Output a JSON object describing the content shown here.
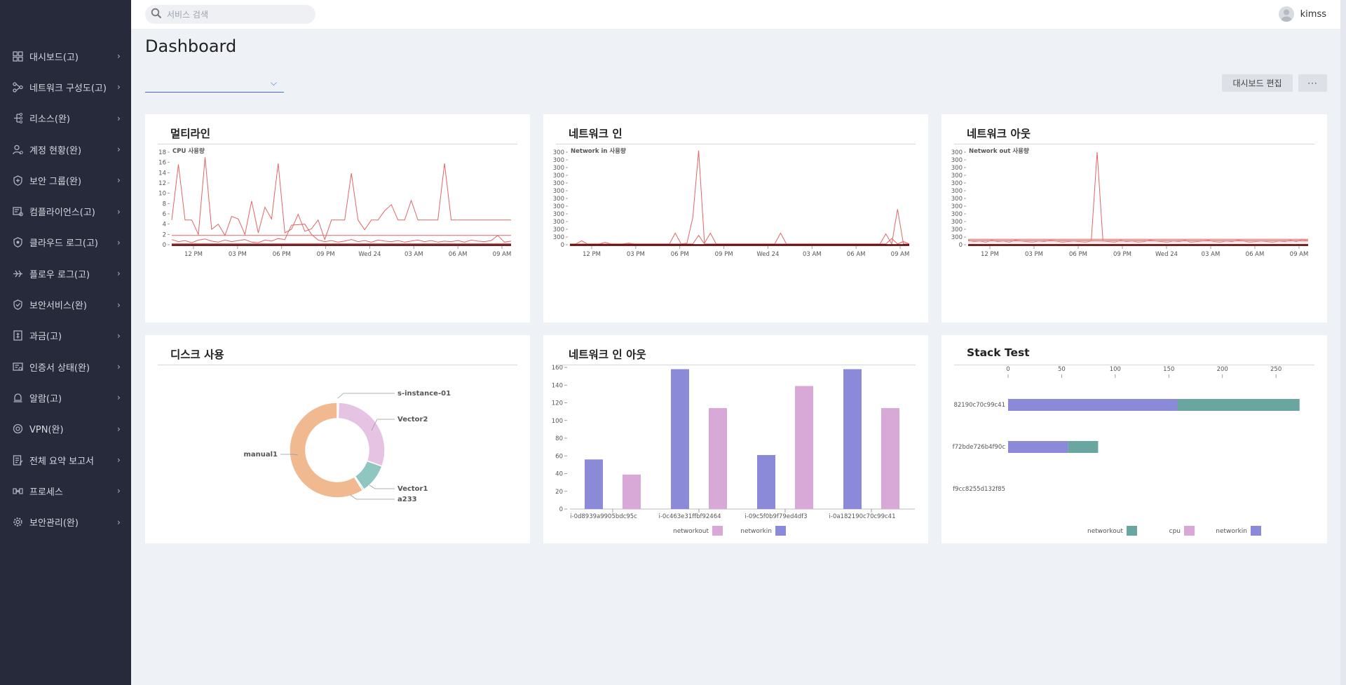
{
  "search": {
    "placeholder": "서비스 검색"
  },
  "user": {
    "name": "kimss"
  },
  "page": {
    "title": "Dashboard"
  },
  "toolbar": {
    "edit_label": "대시보드 편집",
    "more_label": "···"
  },
  "sidebar": {
    "items": [
      {
        "label": "대시보드(고)",
        "icon": "dashboard-icon"
      },
      {
        "label": "네트워크 구성도(고)",
        "icon": "network-topology-icon"
      },
      {
        "label": "리소스(완)",
        "icon": "resource-icon"
      },
      {
        "label": "계정 현황(완)",
        "icon": "account-icon"
      },
      {
        "label": "보안 그룹(완)",
        "icon": "security-group-icon"
      },
      {
        "label": "컴플라이언스(고)",
        "icon": "compliance-icon"
      },
      {
        "label": "클라우드 로그(고)",
        "icon": "cloud-log-icon"
      },
      {
        "label": "플로우 로그(고)",
        "icon": "flow-log-icon"
      },
      {
        "label": "보안서비스(완)",
        "icon": "shield-icon"
      },
      {
        "label": "과금(고)",
        "icon": "billing-icon"
      },
      {
        "label": "인증서 상태(완)",
        "icon": "certificate-icon"
      },
      {
        "label": "알람(고)",
        "icon": "alarm-icon"
      },
      {
        "label": "VPN(완)",
        "icon": "vpn-icon"
      },
      {
        "label": "전체 요약 보고서",
        "icon": "report-icon"
      },
      {
        "label": "프로세스",
        "icon": "process-icon"
      },
      {
        "label": "보안관리(완)",
        "icon": "gear-icon"
      }
    ]
  },
  "cards": [
    {
      "title": "멀티라인"
    },
    {
      "title": "네트워크 인"
    },
    {
      "title": "네트워크 아웃"
    },
    {
      "title": "디스크 사용"
    },
    {
      "title": "네트워크 인 아웃"
    },
    {
      "title": "Stack Test"
    }
  ],
  "colors": {
    "line": "#e06666",
    "networkin": "#8a8ad8",
    "networkout": "#d8a9d6",
    "stack_networkin": "#8a8ad8",
    "stack_networkout": "#6aa6a0",
    "stack_cpu": "#d8a9d6",
    "donut_manual1": "#f0b98f",
    "donut_vector2": "#e6c3e3",
    "donut_vector1": "#8fc6bf",
    "donut_a233": "#8fc6bf"
  },
  "chart_data": [
    {
      "type": "line",
      "ylabel": "CPU 사용량",
      "ylim": [
        0,
        18
      ],
      "yticks": [
        "0",
        "2",
        "4",
        "6",
        "8",
        "10",
        "12",
        "14",
        "16",
        "18"
      ],
      "xticks": [
        "12 PM",
        "03 PM",
        "06 PM",
        "09 PM",
        "Wed 24",
        "03 AM",
        "06 AM",
        "09 AM"
      ],
      "series": [
        {
          "values": [
            4.8,
            15.6,
            4.8,
            4.8,
            2.0,
            17.0,
            3.0,
            4.0,
            1.8,
            5.5,
            5.0,
            2.0,
            8.5,
            2.3,
            7.3,
            5.0,
            15.8,
            2.3,
            3.0,
            5.9,
            2.6,
            3.1,
            4.8,
            1.0,
            4.8,
            4.8,
            4.8,
            13.9,
            4.8,
            2.9,
            4.8,
            4.8,
            6.6,
            7.8,
            4.8,
            4.8,
            8.6,
            4.8,
            4.8,
            4.8,
            4.8,
            15.8,
            4.8,
            4.8,
            4.8,
            4.8,
            4.8,
            4.8,
            4.8,
            4.8,
            4.8,
            4.8
          ]
        },
        {
          "values": [
            1.8,
            1.8,
            1.8,
            1.8,
            1.8,
            1.8,
            1.8,
            1.8,
            1.8,
            1.8,
            1.8,
            1.8,
            1.8,
            1.8,
            1.8,
            1.8,
            1.8,
            1.8,
            1.8,
            1.8,
            1.8,
            1.8,
            1.8,
            1.8,
            1.8,
            1.8,
            1.8,
            1.8,
            1.8,
            1.8,
            1.8,
            1.8,
            1.8,
            1.8,
            1.8,
            1.8,
            1.8,
            1.8,
            1.8,
            1.8,
            1.8,
            1.8,
            1.8,
            1.8,
            1.8,
            1.8,
            1.8,
            1.8,
            1.8,
            1.8,
            1.8,
            1.8
          ]
        },
        {
          "values": [
            1.0,
            0.6,
            0.8,
            0.4,
            0.9,
            1.1,
            0.7,
            0.5,
            0.9,
            0.6,
            0.8,
            1.0,
            0.5,
            0.4,
            0.9,
            0.7,
            1.2,
            1.0,
            3.8,
            3.9,
            4.0,
            2.0,
            0.9,
            0.6,
            0.8,
            0.5,
            0.7,
            1.0,
            0.6,
            0.8,
            0.5,
            0.9,
            0.7,
            0.6,
            0.8,
            0.5,
            0.7,
            0.9,
            0.6,
            0.8,
            0.5,
            0.7,
            0.6,
            0.8,
            0.5,
            0.9,
            0.7,
            0.6,
            0.8,
            1.8,
            0.5,
            0.7
          ]
        },
        {
          "values": [
            0.2,
            0.2,
            0.2,
            0.2,
            0.2,
            0.2,
            0.2,
            0.2,
            0.2,
            0.2,
            0.2,
            0.2,
            0.2,
            0.2,
            0.2,
            0.2,
            0.2,
            0.2,
            0.2,
            0.2,
            0.2,
            0.2,
            0.2,
            0.2,
            0.2,
            0.2,
            0.2,
            0.2,
            0.2,
            0.2,
            0.2,
            0.2,
            0.2,
            0.2,
            0.2,
            0.2,
            0.2,
            0.2,
            0.2,
            0.2,
            0.2,
            0.2,
            0.2,
            0.2,
            0.2,
            0.2,
            0.2,
            0.2,
            0.2,
            0.2,
            0.2,
            0.2
          ]
        }
      ]
    },
    {
      "type": "line",
      "ylabel": "Network in 사용량",
      "yticks": [
        "0",
        "300",
        "300",
        "300",
        "300",
        "300",
        "300",
        "300",
        "300",
        "300",
        "300",
        "300",
        "300"
      ],
      "ylim": [
        0,
        12
      ],
      "xticks": [
        "12 PM",
        "03 PM",
        "06 PM",
        "09 PM",
        "Wed 24",
        "03 AM",
        "06 AM",
        "09 AM"
      ],
      "series": [
        {
          "values": [
            0.1,
            0.1,
            0.5,
            0.1,
            0.1,
            0.1,
            0.3,
            0.1,
            0.1,
            0.1,
            0.2,
            0.1,
            0.1,
            0.1,
            0.1,
            0.1,
            0.1,
            0.1,
            1.5,
            0.1,
            0.2,
            3.5,
            12.2,
            0.2,
            1.5,
            0.1,
            0.1,
            0.1,
            0.1,
            0.1,
            0.1,
            0.1,
            0.1,
            0.1,
            0.1,
            0.1,
            1.5,
            0.1,
            0.1,
            0.1,
            0.1,
            0.1,
            0.1,
            0.1,
            0.1,
            0.1,
            0.1,
            0.1,
            0.1,
            0.1,
            0.1,
            0.1,
            0.1,
            0.1,
            1.4,
            0.1,
            4.6,
            0.1,
            0.1
          ]
        },
        {
          "values": [
            0.1,
            0.1,
            0.1,
            0.1,
            0.1,
            0.1,
            0.1,
            0.1,
            0.1,
            0.1,
            0.1,
            0.1,
            0.1,
            0.1,
            0.1,
            0.1,
            0.1,
            0.1,
            0.1,
            0.1,
            0.1,
            0.1,
            1.2,
            0.1,
            0.1,
            0.1,
            0.1,
            0.1,
            0.1,
            0.1,
            0.1,
            0.1,
            0.1,
            0.1,
            0.1,
            0.1,
            0.1,
            0.1,
            0.1,
            0.1,
            0.1,
            0.1,
            0.1,
            0.1,
            0.1,
            0.1,
            0.1,
            0.1,
            0.1,
            0.1,
            0.1,
            0.1,
            0.1,
            0.1,
            0.1,
            0.8,
            0.1,
            0.4,
            0.1
          ]
        }
      ]
    },
    {
      "type": "line",
      "ylabel": "Network out 사용량",
      "yticks": [
        "0",
        "300",
        "300",
        "300",
        "300",
        "300",
        "300",
        "300",
        "300",
        "300",
        "300",
        "300",
        "300"
      ],
      "ylim": [
        0,
        12
      ],
      "xticks": [
        "12 PM",
        "03 PM",
        "06 PM",
        "09 PM",
        "Wed 24",
        "03 AM",
        "06 AM",
        "09 AM"
      ],
      "series": [
        {
          "values": [
            0.6,
            0.4,
            0.5,
            0.3,
            0.6,
            0.4,
            0.5,
            0.3,
            0.6,
            0.5,
            0.4,
            0.3,
            0.5,
            0.4,
            0.6,
            0.5,
            0.3,
            0.4,
            0.5,
            0.4,
            0.3,
            0.5,
            12.0,
            0.5,
            0.4,
            0.3,
            0.6,
            0.4,
            0.5,
            0.3,
            0.4,
            0.6,
            0.5,
            0.4,
            0.3,
            0.5,
            0.4,
            0.6,
            0.3,
            0.4,
            0.5,
            0.6,
            0.4,
            0.3,
            0.5,
            0.4,
            0.6,
            0.5,
            0.3,
            0.4,
            0.5,
            0.4,
            0.3,
            0.5,
            0.4,
            0.6,
            0.4,
            0.7,
            0.5
          ]
        },
        {
          "values": [
            0.7,
            0.7,
            0.7,
            0.7,
            0.7,
            0.7,
            0.7,
            0.7,
            0.7,
            0.7,
            0.7,
            0.7,
            0.7,
            0.7,
            0.7,
            0.7,
            0.7,
            0.7,
            0.7,
            0.7,
            0.7,
            0.7,
            0.7,
            0.7,
            0.7,
            0.7,
            0.7,
            0.7,
            0.7,
            0.7,
            0.7,
            0.7,
            0.7,
            0.7,
            0.7,
            0.7,
            0.7,
            0.7,
            0.7,
            0.7,
            0.7,
            0.7,
            0.7,
            0.7,
            0.7,
            0.7,
            0.7,
            0.7,
            0.7,
            0.7,
            0.7,
            0.7,
            0.7,
            0.7,
            0.7,
            0.7,
            0.7,
            0.7,
            0.7
          ]
        },
        {
          "values": [
            0.5,
            0.5,
            0.5,
            0.5,
            0.5,
            0.5,
            0.5,
            0.5,
            0.5,
            0.5,
            0.5,
            0.5,
            0.5,
            0.5,
            0.5,
            0.5,
            0.5,
            0.5,
            0.5,
            0.5,
            0.5,
            0.5,
            0.5,
            0.5,
            0.5,
            0.5,
            0.5,
            0.5,
            0.5,
            0.5,
            0.5,
            0.5,
            0.5,
            0.5,
            0.5,
            0.5,
            0.5,
            0.5,
            0.5,
            0.5,
            0.5,
            0.5,
            0.5,
            0.5,
            0.5,
            0.5,
            0.5,
            0.5,
            0.5,
            0.5,
            0.5,
            0.5,
            0.5,
            0.5,
            0.5,
            0.5,
            0.5,
            0.5,
            0.5
          ]
        }
      ]
    },
    {
      "type": "pie",
      "slices": [
        {
          "label": "s-instance-01",
          "value": 0.5
        },
        {
          "label": "Vector2",
          "value": 30
        },
        {
          "label": "Vector1",
          "value": 10
        },
        {
          "label": "a233",
          "value": 0.5
        },
        {
          "label": "manual1",
          "value": 59
        }
      ]
    },
    {
      "type": "bar",
      "categories": [
        "i-0d8939a9905bdc95c",
        "i-0c463e31ffbf92464",
        "i-09c5f0b9f79ed4df3",
        "i-0a182190c70c99c41"
      ],
      "yticks": [
        "0",
        "20",
        "40",
        "60",
        "80",
        "100",
        "120",
        "140",
        "160"
      ],
      "ylim": [
        0,
        160
      ],
      "series": [
        {
          "name": "networkin",
          "values": [
            56,
            158,
            61,
            158
          ]
        },
        {
          "name": "networkout",
          "values": [
            39,
            114,
            139,
            114
          ]
        }
      ],
      "legend": [
        "networkout",
        "networkin"
      ]
    },
    {
      "type": "bar",
      "orientation": "horizontal",
      "stacked": true,
      "categories": [
        "82190c70c99c41",
        "f72bde726b4f90c",
        "f9cc8255d132f85"
      ],
      "xticks": [
        "0",
        "50",
        "100",
        "150",
        "200",
        "250"
      ],
      "xlim": [
        0,
        280
      ],
      "series": [
        {
          "name": "networkin",
          "values": [
            158,
            56,
            0
          ]
        },
        {
          "name": "networkout",
          "values": [
            114,
            28,
            0
          ]
        },
        {
          "name": "cpu",
          "values": [
            0,
            0,
            0
          ]
        }
      ],
      "legend": [
        "networkout",
        "cpu",
        "networkin"
      ]
    }
  ]
}
